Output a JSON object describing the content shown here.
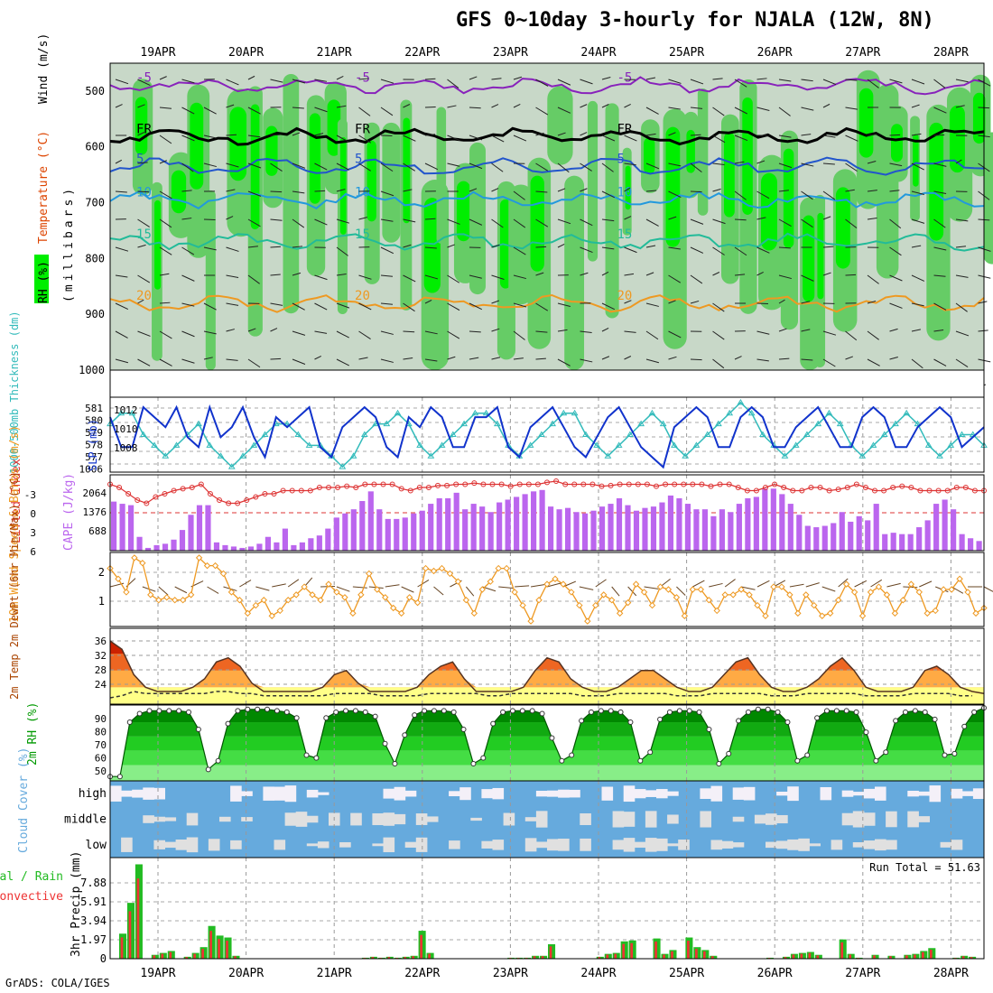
{
  "title": "GFS 0~10day 3-hourly for NJALA (12W, 8N)",
  "credit": "GrADS: COLA/IGES",
  "dates": [
    "19APR",
    "20APR",
    "21APR",
    "22APR",
    "23APR",
    "24APR",
    "25APR",
    "26APR",
    "27APR",
    "28APR"
  ],
  "colors": {
    "rh_green": "#00ee00",
    "rh_mid": "#66cc66",
    "rh_light": "#c8d8c8",
    "slp": "#1133cc",
    "thickness": "#33bbbb",
    "lifted": "#dd3333",
    "cape": "#bb66ee",
    "wind": "#ee9922",
    "rh2m": "#009900",
    "cloud": "#66aadd",
    "precip_total": "#22bb22",
    "precip_conv": "#ee3333"
  },
  "chart_data": [
    {
      "type": "heatmap",
      "panel": "upper-air",
      "ylabel_parts": [
        "RH (%)",
        "Temperature (°C)",
        "Wind (m/s)"
      ],
      "ylabel_unit": "(millibars)",
      "yticks": [
        "500",
        "600",
        "700",
        "800",
        "900",
        "1000"
      ],
      "ylim": [
        1000,
        450
      ],
      "contours": [
        {
          "label": "-5",
          "pressure": 490,
          "color": "#8822bb"
        },
        {
          "label": "FR",
          "pressure": 582,
          "color": "#000000"
        },
        {
          "label": "5",
          "pressure": 635,
          "color": "#2255cc"
        },
        {
          "label": "10",
          "pressure": 695,
          "color": "#2299dd"
        },
        {
          "label": "15",
          "pressure": 770,
          "color": "#22bb99"
        },
        {
          "label": "20",
          "pressure": 880,
          "color": "#ee9922"
        }
      ]
    },
    {
      "type": "line",
      "panel": "slp-thickness",
      "ylabel_left": "1000-500mb Thickness (dm)",
      "ylabel_right": "SLP (mb)",
      "yticks_left": [
        "581",
        "580",
        "579",
        "578",
        "577",
        "1006"
      ],
      "yticks_right": [
        "1012",
        "1010",
        "1008"
      ],
      "series": [
        {
          "name": "SLP",
          "values": [
            1011,
            1008,
            1008,
            1012,
            1011,
            1010,
            1012,
            1009,
            1008,
            1012,
            1009,
            1010,
            1012,
            1009,
            1007,
            1011,
            1010,
            1011,
            1012,
            1008,
            1007,
            1010,
            1011,
            1012,
            1011,
            1008,
            1007,
            1011,
            1010,
            1012,
            1011,
            1008,
            1008,
            1011,
            1011,
            1012,
            1008,
            1007,
            1010,
            1011,
            1012,
            1010,
            1008,
            1007,
            1009,
            1011,
            1012,
            1010,
            1008,
            1007,
            1006,
            1010,
            1011,
            1012,
            1011,
            1008,
            1008,
            1011,
            1012,
            1011,
            1008,
            1008,
            1010,
            1011,
            1012,
            1010,
            1008,
            1008,
            1011,
            1012,
            1011,
            1008,
            1008,
            1010,
            1011,
            1012,
            1011,
            1008,
            1009,
            1010
          ]
        },
        {
          "name": "Thickness",
          "values": [
            580,
            581,
            581,
            579,
            578,
            577,
            578,
            579,
            580,
            578,
            577,
            576,
            577,
            578,
            579,
            580,
            580,
            579,
            578,
            578,
            577,
            576,
            577,
            579,
            580,
            580,
            581,
            580,
            578,
            577,
            578,
            579,
            580,
            581,
            581,
            580,
            578,
            577,
            578,
            579,
            580,
            581,
            581,
            579,
            578,
            577,
            578,
            579,
            580,
            581,
            580,
            578,
            577,
            578,
            579,
            580,
            581,
            582,
            581,
            579,
            578,
            577,
            578,
            579,
            580,
            581,
            580,
            578,
            577,
            578,
            579,
            580,
            581,
            580,
            578,
            577,
            578,
            579,
            579,
            578
          ]
        }
      ]
    },
    {
      "type": "bar",
      "panel": "cape-lifted",
      "ylabel_left": "Lifted Index",
      "ylabel_right": "CAPE (J/kg)",
      "yticks_left": [
        "-3",
        "0",
        "3",
        "6"
      ],
      "yticks_right": [
        "2064",
        "1376",
        "688"
      ],
      "ylim_cape": [
        0,
        2750
      ],
      "cape": [
        1780,
        1700,
        1650,
        500,
        100,
        200,
        250,
        400,
        750,
        1300,
        1650,
        1650,
        300,
        200,
        150,
        100,
        150,
        250,
        500,
        300,
        800,
        200,
        300,
        450,
        550,
        800,
        1200,
        1350,
        1500,
        1800,
        2150,
        1500,
        1150,
        1150,
        1200,
        1350,
        1450,
        1700,
        1900,
        1900,
        2100,
        1500,
        1700,
        1600,
        1400,
        1750,
        1850,
        1950,
        2050,
        2150,
        2200,
        1600,
        1500,
        1550,
        1400,
        1350,
        1450,
        1600,
        1700,
        1900,
        1650,
        1450,
        1550,
        1600,
        1750,
        2000,
        1900,
        1700,
        1500,
        1500,
        1250,
        1500,
        1400,
        1700,
        1900,
        1950,
        2250,
        2250,
        2050,
        1700,
        1300,
        900,
        850,
        900,
        1000,
        1400,
        1050,
        1250,
        1100,
        1700,
        600,
        650,
        600,
        600,
        850,
        1100,
        1700,
        1850,
        1500,
        600,
        450,
        350
      ],
      "lifted": [
        -4.5,
        -4,
        -3,
        -2,
        -1.5,
        -2.5,
        -3,
        -3.5,
        -3.8,
        -4,
        -4.5,
        -3,
        -2,
        -1.5,
        -1.5,
        -2,
        -2.5,
        -3,
        -3,
        -3.5,
        -3.5,
        -3.5,
        -3.5,
        -4,
        -4,
        -4,
        -4.2,
        -4,
        -4.5,
        -4.5,
        -4.5,
        -4.5,
        -3.8,
        -3.5,
        -4,
        -4,
        -4.3,
        -4.3,
        -4.5,
        -4.5,
        -4.7,
        -4.5,
        -4.5,
        -4.5,
        -4.2,
        -4.5,
        -4.5,
        -4.5,
        -4.8,
        -5,
        -4.5,
        -4.5,
        -4.5,
        -4.5,
        -4.2,
        -4.3,
        -4.5,
        -4.5,
        -4.5,
        -4.5,
        -4.2,
        -4.5,
        -4.5,
        -4.5,
        -4.5,
        -4.5,
        -4.2,
        -4.5,
        -4.5,
        -4,
        -3.5,
        -3.5,
        -4,
        -4.5,
        -4,
        -3.5,
        -3.5,
        -4,
        -4,
        -3.5,
        -3.7,
        -4,
        -4.5,
        -4,
        -3.5,
        -3.5,
        -4,
        -4.2,
        -4,
        -3.5,
        -3.5,
        -3.5,
        -3.5,
        -4,
        -4,
        -3.5,
        -3.5
      ]
    },
    {
      "type": "line",
      "panel": "wind10m",
      "ylabel": "10m Wind Speed & Barbs (m/s)",
      "yticks": [
        "2",
        "1"
      ],
      "ylim": [
        0,
        2.8
      ],
      "series": [
        {
          "name": "10m Wind Speed",
          "values": [
            2.2,
            1.8,
            1.3,
            2.6,
            2.4,
            1.2,
            1.0,
            1.1,
            1.0,
            1.0,
            1.2,
            2.6,
            2.3,
            2.3,
            2.0,
            1.3,
            1.0,
            0.5,
            0.8,
            1.0,
            0.4,
            0.6,
            1.0,
            1.2,
            1.5,
            1.2,
            1.0,
            1.6,
            1.3,
            1.1,
            0.5,
            1.2,
            2.0,
            1.4,
            1.1,
            0.7,
            0.5,
            1.1,
            0.9,
            2.2,
            2.1,
            2.2,
            2.0,
            1.7,
            1.0,
            0.5,
            1.4,
            1.7,
            2.2,
            2.2,
            1.3,
            0.8,
            0.2,
            1.0,
            1.6,
            1.8,
            1.6,
            1.3,
            0.8,
            0.2,
            0.8,
            1.2,
            1.0,
            0.5,
            0.9,
            1.6,
            1.3,
            0.8,
            1.5,
            1.4,
            1.1,
            0.4,
            1.4,
            1.4,
            1.0,
            0.6,
            1.2,
            1.2,
            1.4,
            1.2,
            0.8,
            0.4,
            1.5,
            1.5,
            1.2,
            0.5,
            1.2,
            0.8,
            0.4,
            0.5,
            1.0,
            1.6,
            1.3,
            0.4,
            1.3,
            1.5,
            1.2,
            0.5,
            1.0,
            1.6,
            1.3,
            0.5,
            0.6,
            1.4,
            1.4,
            1.8,
            1.3,
            0.5,
            0.7
          ]
        }
      ]
    },
    {
      "type": "area",
      "panel": "temp2m",
      "ylabel": "2m Temp 2m DewPt (6hr Min/Max) (°C)",
      "yticks": [
        "36",
        "32",
        "28",
        "24"
      ],
      "ylim": [
        20,
        38
      ],
      "series": [
        {
          "name": "2m Temp",
          "values": [
            35,
            33,
            27,
            24,
            23,
            23,
            23,
            24,
            26,
            30,
            31,
            29,
            25,
            23,
            23,
            23,
            23,
            23,
            24,
            27,
            28,
            25,
            23,
            23,
            23,
            23,
            24,
            27,
            29,
            30,
            26,
            23,
            23,
            23,
            23,
            24,
            28,
            31,
            30,
            26,
            24,
            23,
            23,
            24,
            26,
            28,
            28,
            26,
            24,
            23,
            23,
            24,
            27,
            30,
            31,
            27,
            24,
            23,
            23,
            24,
            26,
            29,
            31,
            28,
            24,
            23,
            23,
            23,
            24,
            28,
            29,
            27,
            24,
            23,
            22.5
          ]
        },
        {
          "name": "2m DewPt",
          "values": [
            21.5,
            22,
            23,
            22.5,
            22.5,
            22.5,
            22.5,
            22.5,
            22.5,
            23,
            23,
            22.5,
            22.5,
            22,
            22,
            22,
            22,
            22,
            22,
            22.5,
            22.5,
            22.5,
            22.5,
            22,
            22,
            22,
            22,
            22.5,
            22.5,
            22.5,
            22.5,
            22.5,
            22,
            22,
            22.5,
            22.5,
            22.5,
            22.5,
            22.5,
            22.5,
            22,
            22,
            22,
            22.5,
            22.5,
            22.5,
            22.5,
            22.5,
            22,
            22,
            22,
            22.5,
            22.5,
            22.5,
            22.5,
            22.5,
            22,
            22,
            22,
            22.5,
            22.5,
            22.5,
            22.5,
            22.5,
            22,
            22,
            22,
            22,
            22.5,
            22.5,
            22.5,
            22.5,
            22,
            22
          ]
        }
      ]
    },
    {
      "type": "area",
      "panel": "rh2m",
      "ylabel": "2m RH (%)",
      "yticks": [
        "90",
        "80",
        "70",
        "60",
        "50"
      ],
      "ylim": [
        44,
        97
      ],
      "series": [
        {
          "name": "2m RH",
          "values": [
            47,
            47,
            85,
            91,
            93,
            93,
            93,
            93,
            92,
            80,
            52,
            58,
            84,
            93,
            94,
            94,
            94,
            93,
            92,
            88,
            62,
            60,
            88,
            92,
            93,
            93,
            92,
            89,
            70,
            56,
            76,
            90,
            93,
            93,
            93,
            92,
            80,
            56,
            60,
            84,
            92,
            93,
            93,
            93,
            91,
            74,
            58,
            62,
            86,
            92,
            93,
            93,
            92,
            85,
            58,
            64,
            87,
            92,
            93,
            93,
            92,
            80,
            56,
            63,
            86,
            92,
            94,
            94,
            92,
            85,
            58,
            62,
            88,
            93,
            93,
            93,
            92,
            78,
            58,
            64,
            86,
            92,
            93,
            92,
            87,
            62,
            63,
            82,
            92,
            95
          ]
        }
      ]
    },
    {
      "type": "heatmap",
      "panel": "cloud",
      "ylabel": "Cloud Cover (%)",
      "levels": [
        "high",
        "middle",
        "low"
      ]
    },
    {
      "type": "bar",
      "panel": "precip",
      "ylabel_left": "Total / Rain Convective",
      "ylabel_right": "3hr Precip (mm)",
      "legend_total": "Total / Rain",
      "legend_conv": "Convective",
      "run_total": "Run Total = 51.63",
      "yticks": [
        "7.88",
        "5.91",
        "3.94",
        "1.97",
        "0"
      ],
      "ylim": [
        0,
        10.5
      ],
      "total": [
        0,
        2.6,
        5.8,
        9.8,
        0,
        0.4,
        0.6,
        0.8,
        0,
        0.2,
        0.6,
        1.2,
        3.4,
        2.4,
        2.2,
        0.3,
        0,
        0,
        0,
        0,
        0,
        0,
        0,
        0,
        0,
        0,
        0,
        0,
        0,
        0,
        0,
        0.1,
        0.2,
        0.1,
        0.2,
        0.1,
        0.2,
        0.3,
        2.9,
        0.6,
        0,
        0,
        0,
        0,
        0,
        0,
        0,
        0,
        0,
        0.1,
        0.1,
        0.1,
        0.3,
        0.3,
        1.5,
        0,
        0,
        0,
        0,
        0,
        0.2,
        0.5,
        0.6,
        1.8,
        1.9,
        0,
        0,
        2.1,
        0.5,
        0.9,
        0,
        2.2,
        1.2,
        0.9,
        0.3,
        0,
        0,
        0,
        0,
        0,
        0,
        0.1,
        0,
        0.2,
        0.5,
        0.6,
        0.7,
        0.4,
        0,
        0,
        2.0,
        0.5,
        0.1,
        0,
        0.4,
        0,
        0.3,
        0,
        0.4,
        0.5,
        0.8,
        1.1,
        0,
        0,
        0.1,
        0.3,
        0.2,
        0
      ]
    }
  ]
}
